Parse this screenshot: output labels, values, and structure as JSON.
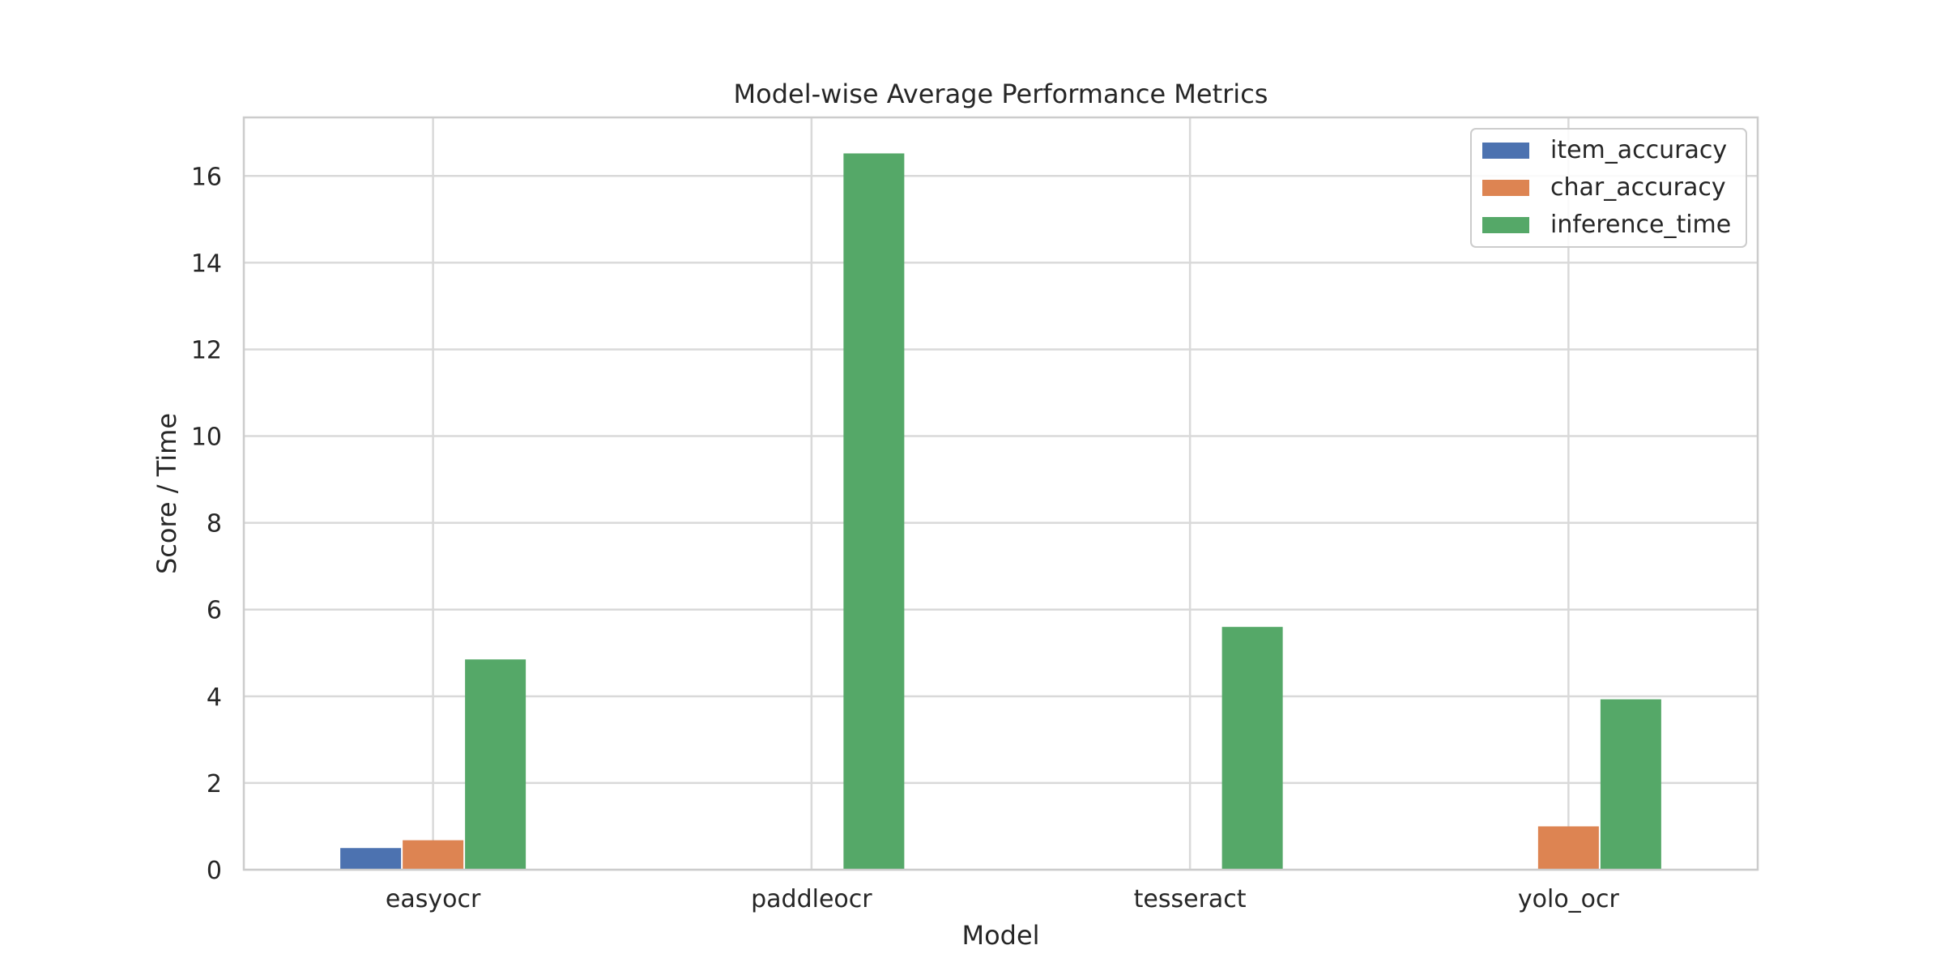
{
  "chart_data": {
    "type": "bar",
    "title": "Model-wise Average Performance Metrics",
    "xlabel": "Model",
    "ylabel": "Score / Time",
    "categories": [
      "easyocr",
      "paddleocr",
      "tesseract",
      "yolo_ocr"
    ],
    "series": [
      {
        "name": "item_accuracy",
        "color": "#4c72b0",
        "values": [
          0.5,
          0.0,
          0.0,
          0.0
        ]
      },
      {
        "name": "char_accuracy",
        "color": "#dd8452",
        "values": [
          0.68,
          0.0,
          0.0,
          1.0
        ]
      },
      {
        "name": "inference_time",
        "color": "#55a868",
        "values": [
          4.85,
          16.52,
          5.6,
          3.93
        ]
      }
    ],
    "ylim": [
      0,
      17.35
    ],
    "yticks": [
      0,
      2,
      4,
      6,
      8,
      10,
      12,
      14,
      16
    ],
    "grid": true,
    "legend_position": "top-right",
    "colors": {
      "grid": "#d9d9d9",
      "frame": "#cccccc",
      "text": "#262626",
      "background": "#ffffff"
    }
  }
}
